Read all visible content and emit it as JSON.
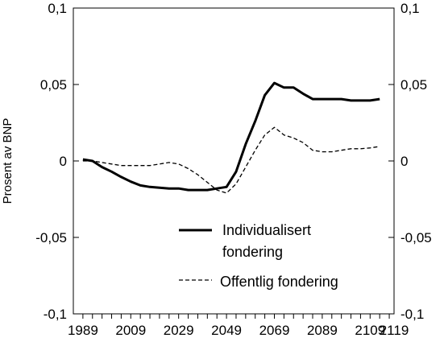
{
  "chart_data": {
    "type": "line",
    "title": "",
    "xlabel": "",
    "ylabel": "Prosent av BNP",
    "xlim": [
      1985,
      2119
    ],
    "ylim": [
      -0.1,
      0.1
    ],
    "x_ticks": [
      "1989",
      "2009",
      "2029",
      "2049",
      "2069",
      "2089",
      "2109",
      "2119"
    ],
    "y_ticks": [
      "0,1",
      "0,05",
      "0",
      "-0,05",
      "-0,1"
    ],
    "legend_position": "bottom-right inside",
    "series": [
      {
        "name": "Individualisert fondering",
        "style": "solid",
        "color": "#000000",
        "points": [
          [
            1989,
            0.001
          ],
          [
            1993,
            0.0
          ],
          [
            1997,
            -0.004
          ],
          [
            2001,
            -0.007
          ],
          [
            2005,
            -0.0105
          ],
          [
            2009,
            -0.0135
          ],
          [
            2013,
            -0.016
          ],
          [
            2017,
            -0.017
          ],
          [
            2021,
            -0.0175
          ],
          [
            2025,
            -0.018
          ],
          [
            2029,
            -0.018
          ],
          [
            2033,
            -0.019
          ],
          [
            2037,
            -0.019
          ],
          [
            2041,
            -0.019
          ],
          [
            2045,
            -0.018
          ],
          [
            2049,
            -0.017
          ],
          [
            2053,
            -0.007
          ],
          [
            2057,
            0.011
          ],
          [
            2061,
            0.026
          ],
          [
            2065,
            0.043
          ],
          [
            2069,
            0.051
          ],
          [
            2073,
            0.048
          ],
          [
            2077,
            0.048
          ],
          [
            2081,
            0.044
          ],
          [
            2085,
            0.0405
          ],
          [
            2089,
            0.0405
          ],
          [
            2093,
            0.0405
          ],
          [
            2097,
            0.0405
          ],
          [
            2101,
            0.0395
          ],
          [
            2105,
            0.0395
          ],
          [
            2109,
            0.0395
          ],
          [
            2113,
            0.0405
          ]
        ]
      },
      {
        "name": "Offentlig fondering",
        "style": "dashed",
        "color": "#000000",
        "points": [
          [
            1989,
            0.0
          ],
          [
            1993,
            0.0
          ],
          [
            1997,
            -0.001
          ],
          [
            2001,
            -0.002
          ],
          [
            2005,
            -0.003
          ],
          [
            2009,
            -0.003
          ],
          [
            2013,
            -0.003
          ],
          [
            2017,
            -0.003
          ],
          [
            2021,
            -0.002
          ],
          [
            2025,
            -0.001
          ],
          [
            2029,
            -0.002
          ],
          [
            2033,
            -0.005
          ],
          [
            2037,
            -0.009
          ],
          [
            2041,
            -0.014
          ],
          [
            2045,
            -0.019
          ],
          [
            2049,
            -0.021
          ],
          [
            2053,
            -0.015
          ],
          [
            2057,
            -0.004
          ],
          [
            2061,
            0.007
          ],
          [
            2065,
            0.017
          ],
          [
            2069,
            0.022
          ],
          [
            2073,
            0.017
          ],
          [
            2077,
            0.015
          ],
          [
            2081,
            0.012
          ],
          [
            2085,
            0.007
          ],
          [
            2089,
            0.006
          ],
          [
            2093,
            0.006
          ],
          [
            2097,
            0.007
          ],
          [
            2101,
            0.008
          ],
          [
            2105,
            0.008
          ],
          [
            2109,
            0.0085
          ],
          [
            2113,
            0.0095
          ]
        ]
      }
    ]
  }
}
